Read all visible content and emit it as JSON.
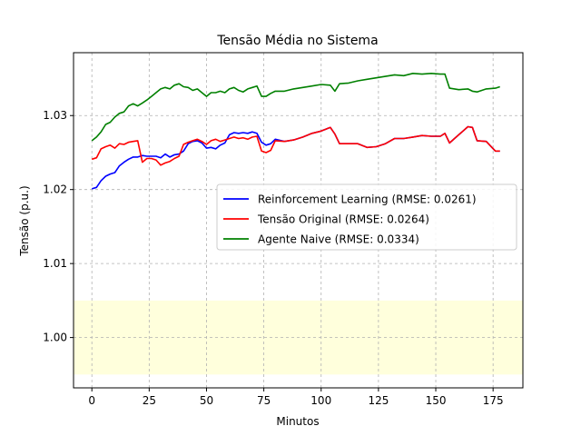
{
  "chart_data": {
    "type": "line",
    "title": "Tensão Média no Sistema",
    "xlabel": "Minutos",
    "ylabel": "Tensão (p.u.)",
    "xlim": [
      -8,
      188
    ],
    "ylim": [
      0.9932,
      1.0385
    ],
    "xticks": [
      0,
      25,
      50,
      75,
      100,
      125,
      150,
      175
    ],
    "yticks": [
      1.0,
      1.01,
      1.02,
      1.03
    ],
    "ytick_labels": [
      "1.00",
      "1.01",
      "1.02",
      "1.03"
    ],
    "grid": true,
    "legend_position": "center-right",
    "band": {
      "y0": 0.995,
      "y1": 1.005,
      "color": "#ffffdc"
    },
    "series": [
      {
        "name": "Reinforcement Learning (RMSE: 0.0261)",
        "color": "#0000ff",
        "x": [
          0,
          2,
          4,
          6,
          8,
          10,
          12,
          14,
          16,
          18,
          20,
          22,
          24,
          26,
          28,
          30,
          32,
          34,
          36,
          38,
          40,
          42,
          44,
          46,
          48,
          50,
          52,
          54,
          56,
          58,
          60,
          62,
          64,
          66,
          68,
          70,
          72,
          74,
          76,
          78,
          80,
          84,
          88,
          92,
          96,
          100,
          104,
          106,
          108,
          112,
          116,
          120,
          124,
          128,
          132,
          136,
          140,
          144,
          148,
          152,
          154,
          156,
          160,
          164,
          166,
          168,
          172,
          176,
          178
        ],
        "y": [
          1.0201,
          1.0203,
          1.0212,
          1.0218,
          1.0221,
          1.0223,
          1.0232,
          1.0237,
          1.0241,
          1.0244,
          1.0244,
          1.0246,
          1.0245,
          1.0245,
          1.0245,
          1.0243,
          1.0248,
          1.0244,
          1.0247,
          1.0248,
          1.0252,
          1.0262,
          1.0265,
          1.0266,
          1.0263,
          1.0256,
          1.0257,
          1.0255,
          1.026,
          1.0263,
          1.0274,
          1.0277,
          1.0276,
          1.0277,
          1.0276,
          1.0278,
          1.0276,
          1.0264,
          1.026,
          1.0262,
          1.0268,
          1.0265,
          1.0267,
          1.0271,
          1.0276,
          1.0279,
          1.0284,
          1.0275,
          1.0262,
          1.0262,
          1.0262,
          1.0257,
          1.0258,
          1.0262,
          1.0269,
          1.0269,
          1.0271,
          1.0273,
          1.0272,
          1.0272,
          1.0276,
          1.0263,
          1.0274,
          1.0285,
          1.0284,
          1.0266,
          1.0265,
          1.0252,
          1.0252
        ]
      },
      {
        "name": "Tensão Original (RMSE: 0.0264)",
        "color": "#ff0000",
        "x": [
          0,
          2,
          4,
          6,
          8,
          10,
          12,
          14,
          16,
          18,
          20,
          22,
          24,
          26,
          28,
          30,
          32,
          34,
          36,
          38,
          40,
          42,
          44,
          46,
          48,
          50,
          52,
          54,
          56,
          58,
          60,
          62,
          64,
          66,
          68,
          70,
          72,
          74,
          76,
          78,
          80,
          84,
          88,
          92,
          96,
          100,
          104,
          106,
          108,
          112,
          116,
          120,
          124,
          128,
          132,
          136,
          140,
          144,
          148,
          152,
          154,
          156,
          160,
          164,
          166,
          168,
          172,
          176,
          178
        ],
        "y": [
          1.0241,
          1.0243,
          1.0255,
          1.0258,
          1.026,
          1.0256,
          1.0262,
          1.0261,
          1.0264,
          1.0265,
          1.0266,
          1.0237,
          1.0242,
          1.0242,
          1.024,
          1.0233,
          1.0236,
          1.0238,
          1.0242,
          1.0245,
          1.0261,
          1.0264,
          1.0266,
          1.0268,
          1.0265,
          1.0261,
          1.0266,
          1.0268,
          1.0265,
          1.0267,
          1.0269,
          1.0271,
          1.0269,
          1.027,
          1.0268,
          1.0271,
          1.0272,
          1.0252,
          1.025,
          1.0253,
          1.0266,
          1.0265,
          1.0267,
          1.0271,
          1.0276,
          1.0279,
          1.0284,
          1.0275,
          1.0262,
          1.0262,
          1.0262,
          1.0257,
          1.0258,
          1.0262,
          1.0269,
          1.0269,
          1.0271,
          1.0273,
          1.0272,
          1.0272,
          1.0276,
          1.0263,
          1.0274,
          1.0285,
          1.0284,
          1.0266,
          1.0265,
          1.0252,
          1.0252
        ]
      },
      {
        "name": "Agente Naive (RMSE: 0.0334)",
        "color": "#008000",
        "x": [
          0,
          2,
          4,
          6,
          8,
          10,
          12,
          14,
          16,
          18,
          20,
          22,
          24,
          26,
          28,
          30,
          32,
          34,
          36,
          38,
          40,
          42,
          44,
          46,
          48,
          50,
          52,
          54,
          56,
          58,
          60,
          62,
          64,
          66,
          68,
          70,
          72,
          74,
          76,
          78,
          80,
          84,
          88,
          92,
          96,
          100,
          104,
          106,
          108,
          112,
          116,
          120,
          124,
          128,
          132,
          136,
          140,
          144,
          148,
          152,
          154,
          156,
          160,
          164,
          166,
          168,
          172,
          176,
          178
        ],
        "y": [
          1.0266,
          1.0271,
          1.0278,
          1.0288,
          1.0291,
          1.0298,
          1.0303,
          1.0305,
          1.0313,
          1.0316,
          1.0313,
          1.0317,
          1.0321,
          1.0326,
          1.0331,
          1.0336,
          1.0338,
          1.0336,
          1.0341,
          1.0343,
          1.0339,
          1.0338,
          1.0334,
          1.0336,
          1.0331,
          1.0326,
          1.0331,
          1.0331,
          1.0333,
          1.0331,
          1.0336,
          1.0338,
          1.0334,
          1.0332,
          1.0336,
          1.0338,
          1.034,
          1.0326,
          1.0326,
          1.033,
          1.0333,
          1.0333,
          1.0336,
          1.0338,
          1.034,
          1.0342,
          1.0341,
          1.0333,
          1.0343,
          1.0344,
          1.0347,
          1.0349,
          1.0351,
          1.0353,
          1.0355,
          1.0354,
          1.0357,
          1.0356,
          1.0357,
          1.0356,
          1.0356,
          1.0337,
          1.0335,
          1.0336,
          1.0333,
          1.0332,
          1.0336,
          1.0337,
          1.0339
        ]
      }
    ]
  }
}
